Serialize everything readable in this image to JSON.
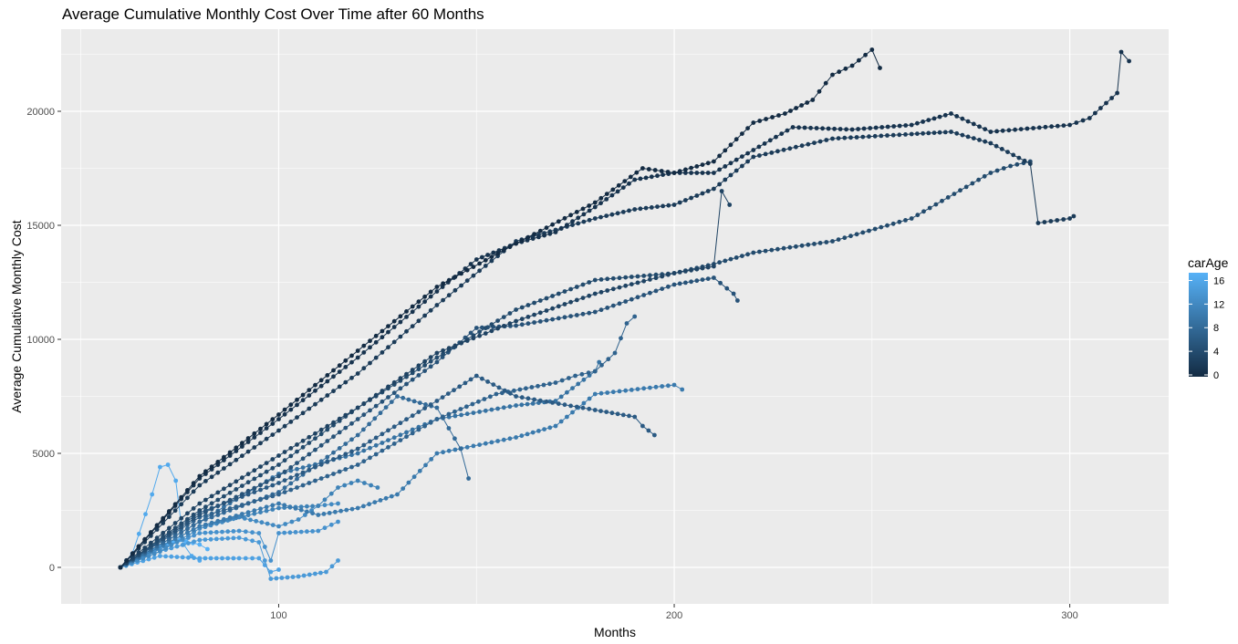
{
  "chart_data": {
    "type": "line",
    "title": "Average Cumulative Monthly Cost Over Time after 60 Months",
    "xlabel": "Months",
    "ylabel": "Average Cumulative Monthly Cost",
    "xlim": [
      45,
      325
    ],
    "ylim": [
      -1600,
      23600
    ],
    "x_ticks": [
      100,
      200,
      300
    ],
    "y_ticks": [
      0,
      5000,
      10000,
      15000,
      20000
    ],
    "x_tick_labels": [
      "100",
      "200",
      "300"
    ],
    "y_tick_labels": [
      "0",
      "5000",
      "10000",
      "15000",
      "20000"
    ],
    "grid": true,
    "markers": true,
    "legend": {
      "title": "carAge",
      "placement": "right",
      "type": "colorbar",
      "range": [
        0,
        17
      ],
      "ticks": [
        0,
        4,
        8,
        12,
        16
      ],
      "tick_labels": [
        "0",
        "4",
        "8",
        "12",
        "16"
      ],
      "low_color": "#132B43",
      "high_color": "#56B1F7"
    },
    "series": [
      {
        "carAge": 0,
        "points": [
          [
            60,
            0
          ],
          [
            80,
            4000
          ],
          [
            100,
            6700
          ],
          [
            120,
            9500
          ],
          [
            140,
            12300
          ],
          [
            160,
            14200
          ],
          [
            180,
            16000
          ],
          [
            192,
            17500
          ],
          [
            200,
            17300
          ],
          [
            210,
            17800
          ],
          [
            220,
            19500
          ],
          [
            228,
            19900
          ],
          [
            235,
            20500
          ],
          [
            240,
            21600
          ],
          [
            245,
            22000
          ],
          [
            250,
            22700
          ],
          [
            252,
            21900
          ]
        ]
      },
      {
        "carAge": 1,
        "points": [
          [
            60,
            0
          ],
          [
            80,
            3900
          ],
          [
            100,
            6500
          ],
          [
            120,
            9200
          ],
          [
            140,
            12100
          ],
          [
            150,
            13500
          ],
          [
            160,
            14200
          ],
          [
            170,
            14700
          ],
          [
            180,
            15800
          ],
          [
            190,
            17000
          ],
          [
            200,
            17300
          ],
          [
            210,
            17300
          ],
          [
            220,
            18300
          ],
          [
            230,
            19300
          ],
          [
            245,
            19200
          ],
          [
            260,
            19400
          ],
          [
            270,
            19900
          ],
          [
            280,
            19100
          ],
          [
            300,
            19400
          ],
          [
            305,
            19700
          ],
          [
            312,
            20800
          ],
          [
            313,
            22600
          ],
          [
            315,
            22200
          ]
        ]
      },
      {
        "carAge": 2,
        "points": [
          [
            60,
            0
          ],
          [
            80,
            3600
          ],
          [
            100,
            6000
          ],
          [
            120,
            8500
          ],
          [
            140,
            11500
          ],
          [
            160,
            14300
          ],
          [
            170,
            14800
          ],
          [
            180,
            15300
          ],
          [
            190,
            15700
          ],
          [
            200,
            15900
          ],
          [
            210,
            16600
          ],
          [
            220,
            18000
          ],
          [
            240,
            18800
          ],
          [
            260,
            19000
          ],
          [
            270,
            19100
          ],
          [
            280,
            18600
          ],
          [
            290,
            17700
          ],
          [
            292,
            15100
          ],
          [
            300,
            15300
          ],
          [
            301,
            15400
          ]
        ]
      },
      {
        "carAge": 3,
        "points": [
          [
            60,
            0
          ],
          [
            80,
            2800
          ],
          [
            100,
            4900
          ],
          [
            120,
            7000
          ],
          [
            140,
            9400
          ],
          [
            160,
            10800
          ],
          [
            180,
            12000
          ],
          [
            200,
            12900
          ],
          [
            210,
            13200
          ],
          [
            212,
            16500
          ],
          [
            214,
            15900
          ]
        ]
      },
      {
        "carAge": 4,
        "points": [
          [
            60,
            0
          ],
          [
            80,
            2500
          ],
          [
            100,
            4500
          ],
          [
            120,
            7000
          ],
          [
            140,
            9200
          ],
          [
            160,
            11300
          ],
          [
            180,
            12600
          ],
          [
            200,
            12900
          ],
          [
            210,
            13300
          ],
          [
            220,
            13800
          ],
          [
            240,
            14300
          ],
          [
            260,
            15300
          ],
          [
            280,
            17300
          ],
          [
            285,
            17600
          ],
          [
            290,
            17800
          ]
        ]
      },
      {
        "carAge": 5,
        "points": [
          [
            60,
            0
          ],
          [
            80,
            2300
          ],
          [
            100,
            4000
          ],
          [
            120,
            6500
          ],
          [
            140,
            9000
          ],
          [
            150,
            10500
          ],
          [
            160,
            10600
          ],
          [
            180,
            11200
          ],
          [
            200,
            12400
          ],
          [
            210,
            12700
          ],
          [
            215,
            12000
          ],
          [
            216,
            11700
          ]
        ]
      },
      {
        "carAge": 6,
        "points": [
          [
            60,
            0
          ],
          [
            80,
            2400
          ],
          [
            100,
            3700
          ],
          [
            120,
            5200
          ],
          [
            140,
            7300
          ],
          [
            150,
            8400
          ],
          [
            160,
            7500
          ],
          [
            180,
            6900
          ],
          [
            190,
            6600
          ],
          [
            192,
            6200
          ],
          [
            195,
            5800
          ]
        ]
      },
      {
        "carAge": 7,
        "points": [
          [
            60,
            0
          ],
          [
            80,
            2200
          ],
          [
            100,
            3200
          ],
          [
            120,
            4500
          ],
          [
            140,
            6500
          ],
          [
            155,
            7600
          ],
          [
            170,
            8100
          ],
          [
            175,
            8400
          ],
          [
            180,
            8600
          ],
          [
            185,
            9400
          ],
          [
            188,
            10700
          ],
          [
            190,
            11000
          ]
        ]
      },
      {
        "carAge": 8,
        "points": [
          [
            60,
            0
          ],
          [
            80,
            2000
          ],
          [
            100,
            3300
          ],
          [
            120,
            5800
          ],
          [
            130,
            7500
          ],
          [
            140,
            7000
          ],
          [
            146,
            5200
          ],
          [
            148,
            3900
          ]
        ]
      },
      {
        "carAge": 9,
        "points": [
          [
            60,
            0
          ],
          [
            80,
            2000
          ],
          [
            100,
            4100
          ],
          [
            120,
            5000
          ],
          [
            140,
            6500
          ],
          [
            160,
            7100
          ],
          [
            170,
            7300
          ],
          [
            180,
            8600
          ],
          [
            181,
            9000
          ]
        ]
      },
      {
        "carAge": 10,
        "points": [
          [
            60,
            0
          ],
          [
            80,
            1800
          ],
          [
            100,
            2800
          ],
          [
            110,
            2300
          ],
          [
            120,
            2600
          ],
          [
            130,
            3200
          ],
          [
            140,
            5000
          ],
          [
            160,
            5700
          ],
          [
            170,
            6200
          ],
          [
            180,
            7600
          ],
          [
            200,
            8000
          ],
          [
            202,
            7800
          ]
        ]
      },
      {
        "carAge": 11,
        "points": [
          [
            60,
            0
          ],
          [
            80,
            1800
          ],
          [
            100,
            2600
          ],
          [
            110,
            2700
          ],
          [
            115,
            3500
          ],
          [
            120,
            3800
          ],
          [
            125,
            3500
          ]
        ]
      },
      {
        "carAge": 12,
        "points": [
          [
            60,
            0
          ],
          [
            70,
            700
          ],
          [
            80,
            1700
          ],
          [
            90,
            2200
          ],
          [
            100,
            1800
          ],
          [
            105,
            2100
          ],
          [
            110,
            2700
          ],
          [
            115,
            2800
          ]
        ]
      },
      {
        "carAge": 13,
        "points": [
          [
            60,
            0
          ],
          [
            70,
            800
          ],
          [
            80,
            1500
          ],
          [
            90,
            1600
          ],
          [
            95,
            1500
          ],
          [
            98,
            300
          ],
          [
            100,
            1500
          ],
          [
            110,
            1600
          ],
          [
            115,
            2000
          ]
        ]
      },
      {
        "carAge": 14,
        "points": [
          [
            60,
            0
          ],
          [
            70,
            700
          ],
          [
            80,
            1200
          ],
          [
            90,
            1300
          ],
          [
            95,
            1100
          ],
          [
            98,
            -500
          ],
          [
            105,
            -400
          ],
          [
            112,
            -200
          ],
          [
            115,
            300
          ]
        ]
      },
      {
        "carAge": 15,
        "points": [
          [
            60,
            0
          ],
          [
            70,
            500
          ],
          [
            80,
            400
          ],
          [
            90,
            400
          ],
          [
            95,
            400
          ],
          [
            98,
            -200
          ],
          [
            100,
            -100
          ]
        ]
      },
      {
        "carAge": 16,
        "points": [
          [
            60,
            0
          ],
          [
            63,
            600
          ],
          [
            68,
            3200
          ],
          [
            70,
            4400
          ],
          [
            72,
            4500
          ],
          [
            74,
            3800
          ],
          [
            76,
            1000
          ],
          [
            78,
            500
          ],
          [
            80,
            300
          ]
        ]
      },
      {
        "carAge": 17,
        "points": [
          [
            60,
            0
          ],
          [
            70,
            900
          ],
          [
            75,
            1200
          ],
          [
            80,
            1000
          ],
          [
            82,
            800
          ]
        ]
      }
    ]
  }
}
